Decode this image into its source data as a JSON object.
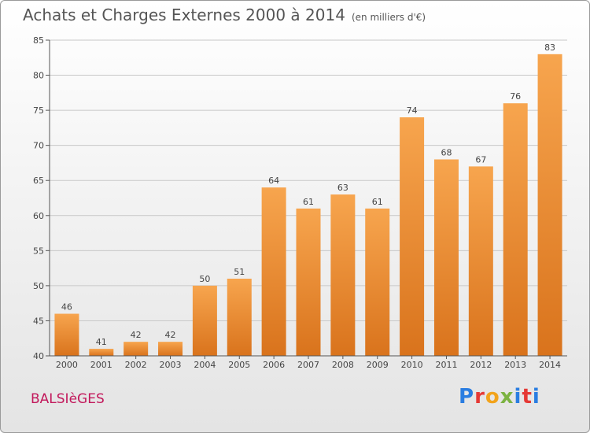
{
  "header": {
    "title": "Achats et Charges Externes 2000 à 2014",
    "subtitle": "(en milliers d'€)"
  },
  "footer": {
    "city": "BALSIèGES",
    "brand": "Proxiti",
    "brand_colors": [
      "#2a7de1",
      "#e53935",
      "#f2a31b",
      "#7cb342",
      "#2a7de1",
      "#e53935",
      "#2a7de1"
    ]
  },
  "colors": {
    "bar_light": "#f7a54e",
    "bar_dark": "#d9731c",
    "grid": "#c8c8c8",
    "axis": "#555555"
  },
  "chart_data": {
    "type": "bar",
    "categories": [
      "2000",
      "2001",
      "2002",
      "2003",
      "2004",
      "2005",
      "2006",
      "2007",
      "2008",
      "2009",
      "2010",
      "2011",
      "2012",
      "2013",
      "2014"
    ],
    "values": [
      46,
      41,
      42,
      42,
      50,
      51,
      64,
      61,
      63,
      61,
      74,
      68,
      67,
      76,
      83
    ],
    "title": "Achats et Charges Externes 2000 à 2014",
    "ylim": [
      40,
      85
    ],
    "yticks": [
      40,
      45,
      50,
      55,
      60,
      65,
      70,
      75,
      80,
      85
    ],
    "grid": true
  }
}
